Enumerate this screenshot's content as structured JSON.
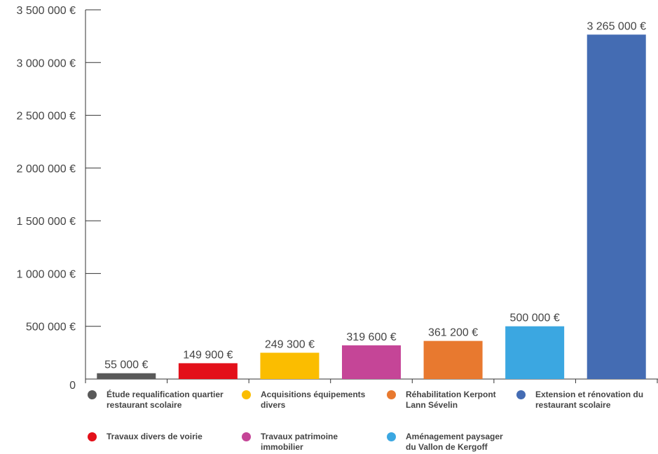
{
  "chart_data": {
    "type": "bar",
    "categories": [
      "Étude requalification quartier restaurant scolaire",
      "Travaux divers de voirie",
      "Acquisitions équipements divers",
      "Travaux patrimoine immobilier",
      "Réhabilitation Kerpont Lann Sévelin",
      "Aménagement paysager du Vallon de Kergoff",
      "Extension et rénovation du restaurant scolaire"
    ],
    "values": [
      55000,
      149900,
      249300,
      319600,
      361200,
      500000,
      3265000
    ],
    "data_labels": [
      "55 000 €",
      "149 900 €",
      "249 300 €",
      "319 600 €",
      "361 200 €",
      "500 000 €",
      "3 265 000 €"
    ],
    "colors": [
      "#595959",
      "#e3101a",
      "#fbbd00",
      "#c54597",
      "#e8792f",
      "#3ba7e1",
      "#446cb3"
    ],
    "ylim": [
      0,
      3500000
    ],
    "y_ticks": [
      0,
      500000,
      1000000,
      1500000,
      2000000,
      2500000,
      3000000,
      3500000
    ],
    "y_tick_labels": [
      "0",
      "500 000 €",
      "1 000 000 €",
      "1 500 000 €",
      "2 000 000 €",
      "2 500 000 €",
      "3 000 000 €",
      "3 500 000 €"
    ],
    "title": "",
    "xlabel": "",
    "ylabel": "",
    "grid": false,
    "legend_position": "bottom"
  },
  "legend": [
    {
      "lines": [
        "Étude requalification quartier",
        "restaurant scolaire"
      ],
      "color": "#595959"
    },
    {
      "lines": [
        "Acquisitions équipements",
        "divers"
      ],
      "color": "#fbbd00"
    },
    {
      "lines": [
        "Réhabilitation Kerpont",
        "Lann Sévelin"
      ],
      "color": "#e8792f"
    },
    {
      "lines": [
        "Extension et rénovation du",
        "restaurant scolaire"
      ],
      "color": "#446cb3"
    },
    {
      "lines": [
        "Travaux divers de voirie"
      ],
      "color": "#e3101a"
    },
    {
      "lines": [
        "Travaux patrimoine",
        "immobilier"
      ],
      "color": "#c54597"
    },
    {
      "lines": [
        "Aménagement paysager",
        "du Vallon de Kergoff"
      ],
      "color": "#3ba7e1"
    }
  ]
}
